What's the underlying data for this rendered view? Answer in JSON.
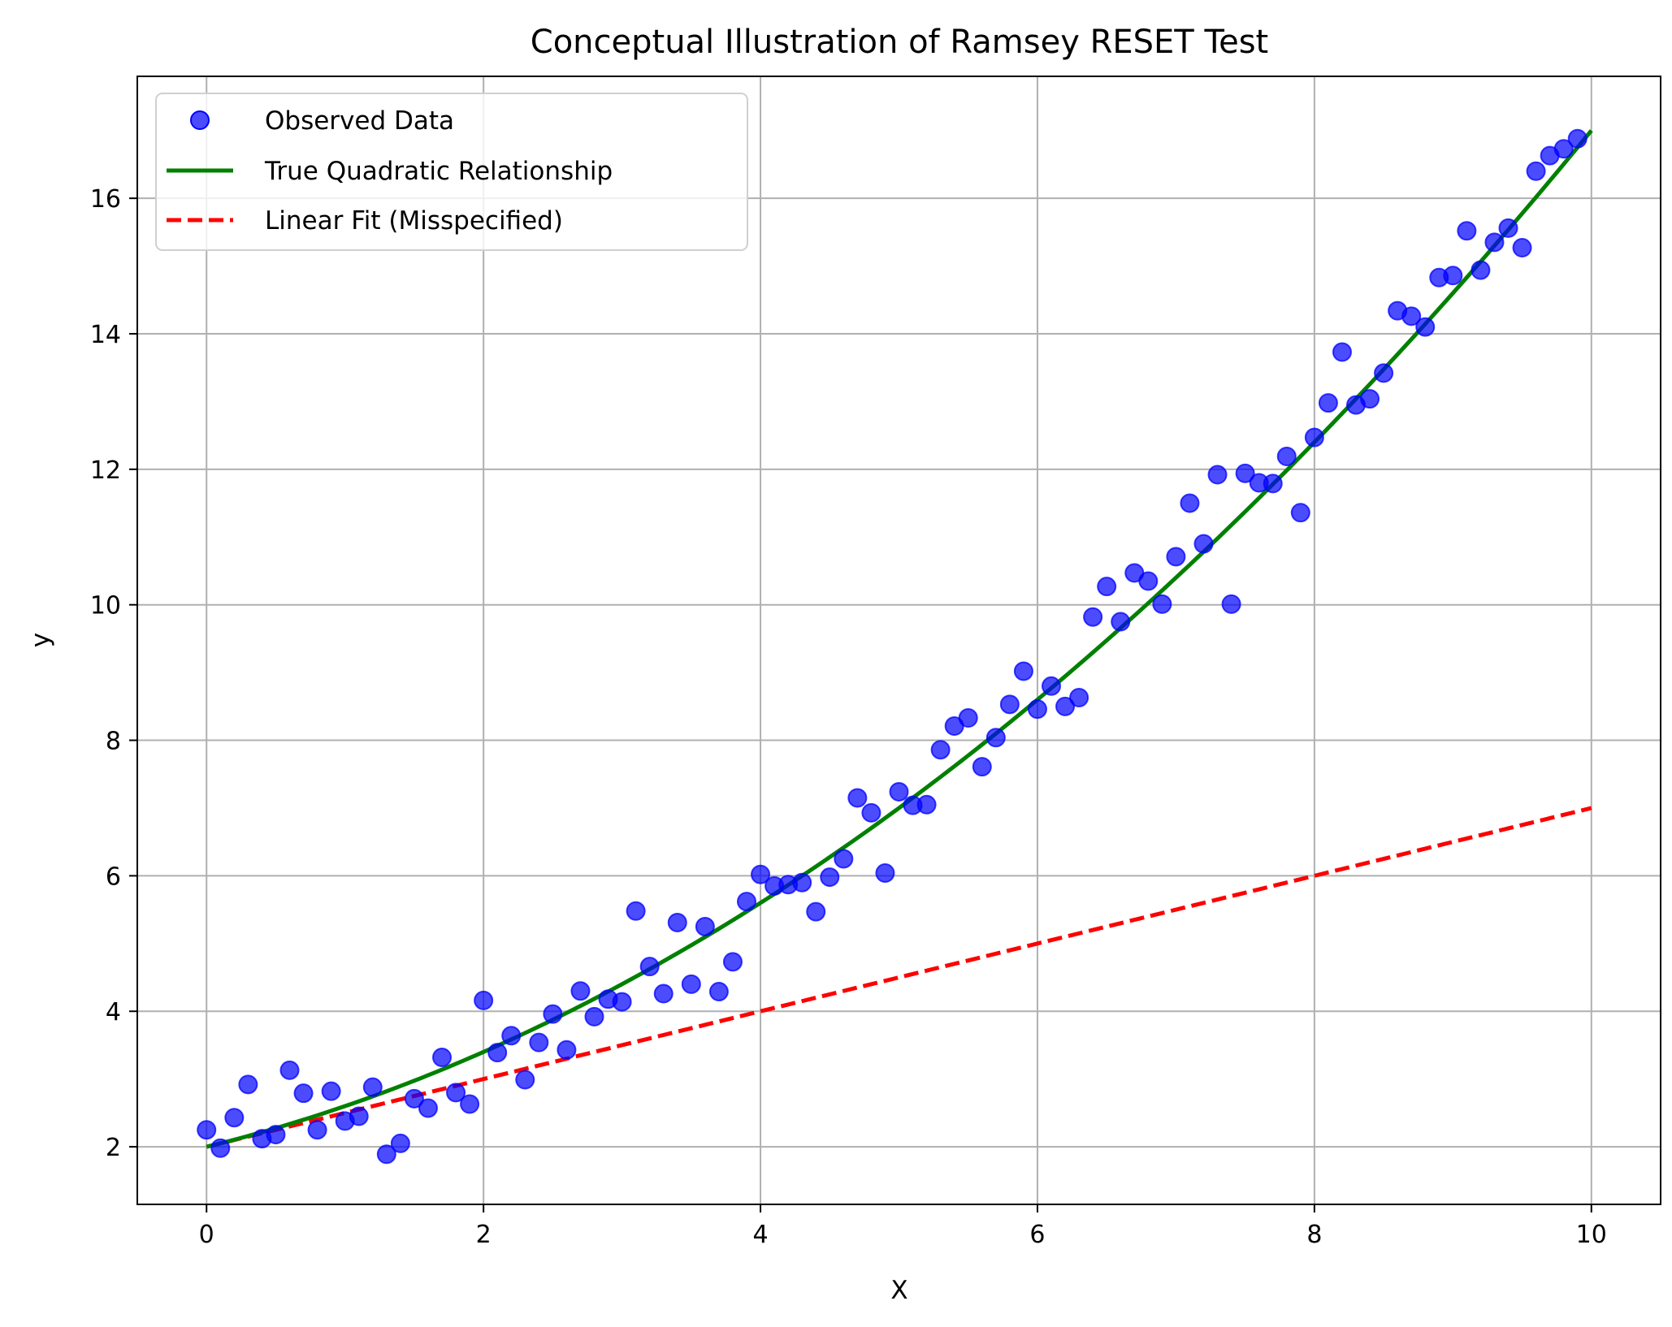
{
  "chart_data": {
    "type": "scatter",
    "title": "Conceptual Illustration of Ramsey RESET Test",
    "xlabel": "X",
    "ylabel": "y",
    "xlim": [
      -0.5,
      10.5
    ],
    "ylim": [
      1.15,
      17.8
    ],
    "xticks": [
      0,
      2,
      4,
      6,
      8,
      10
    ],
    "yticks": [
      2,
      4,
      6,
      8,
      10,
      12,
      14,
      16
    ],
    "grid": true,
    "legend_position": "top-left",
    "colors": {
      "observed": "#0000ff",
      "quadratic": "#008000",
      "linear": "#ff0000"
    },
    "series": [
      {
        "name": "Observed Data",
        "kind": "scatter",
        "points": [
          [
            0.0,
            2.25
          ],
          [
            0.1,
            1.98
          ],
          [
            0.2,
            2.43
          ],
          [
            0.3,
            2.92
          ],
          [
            0.4,
            2.12
          ],
          [
            0.5,
            2.18
          ],
          [
            0.6,
            3.13
          ],
          [
            0.7,
            2.79
          ],
          [
            0.8,
            2.25
          ],
          [
            0.9,
            2.82
          ],
          [
            1.0,
            2.38
          ],
          [
            1.1,
            2.45
          ],
          [
            1.2,
            2.88
          ],
          [
            1.3,
            1.89
          ],
          [
            1.4,
            2.05
          ],
          [
            1.5,
            2.71
          ],
          [
            1.6,
            2.57
          ],
          [
            1.7,
            3.32
          ],
          [
            1.8,
            2.8
          ],
          [
            1.9,
            2.63
          ],
          [
            2.0,
            4.16
          ],
          [
            2.1,
            3.39
          ],
          [
            2.2,
            3.64
          ],
          [
            2.3,
            2.99
          ],
          [
            2.4,
            3.54
          ],
          [
            2.5,
            3.96
          ],
          [
            2.6,
            3.43
          ],
          [
            2.7,
            4.3
          ],
          [
            2.8,
            3.92
          ],
          [
            2.9,
            4.18
          ],
          [
            3.0,
            4.14
          ],
          [
            3.1,
            5.48
          ],
          [
            3.2,
            4.66
          ],
          [
            3.3,
            4.26
          ],
          [
            3.4,
            5.31
          ],
          [
            3.5,
            4.4
          ],
          [
            3.6,
            5.25
          ],
          [
            3.7,
            4.29
          ],
          [
            3.8,
            4.73
          ],
          [
            3.9,
            5.62
          ],
          [
            4.0,
            6.02
          ],
          [
            4.1,
            5.85
          ],
          [
            4.2,
            5.87
          ],
          [
            4.3,
            5.9
          ],
          [
            4.4,
            5.47
          ],
          [
            4.5,
            5.98
          ],
          [
            4.6,
            6.25
          ],
          [
            4.7,
            7.15
          ],
          [
            4.8,
            6.93
          ],
          [
            4.9,
            6.04
          ],
          [
            5.0,
            7.24
          ],
          [
            5.1,
            7.04
          ],
          [
            5.2,
            7.05
          ],
          [
            5.3,
            7.86
          ],
          [
            5.4,
            8.21
          ],
          [
            5.5,
            8.33
          ],
          [
            5.6,
            7.61
          ],
          [
            5.7,
            8.04
          ],
          [
            5.8,
            8.53
          ],
          [
            5.9,
            9.02
          ],
          [
            6.0,
            8.46
          ],
          [
            6.1,
            8.8
          ],
          [
            6.2,
            8.5
          ],
          [
            6.3,
            8.63
          ],
          [
            6.4,
            9.82
          ],
          [
            6.5,
            10.27
          ],
          [
            6.6,
            9.75
          ],
          [
            6.7,
            10.47
          ],
          [
            6.8,
            10.35
          ],
          [
            6.9,
            10.01
          ],
          [
            7.0,
            10.71
          ],
          [
            7.1,
            11.5
          ],
          [
            7.2,
            10.9
          ],
          [
            7.3,
            11.92
          ],
          [
            7.4,
            10.01
          ],
          [
            7.5,
            11.94
          ],
          [
            7.6,
            11.8
          ],
          [
            7.7,
            11.79
          ],
          [
            7.8,
            12.19
          ],
          [
            7.9,
            11.36
          ],
          [
            8.0,
            12.47
          ],
          [
            8.1,
            12.98
          ],
          [
            8.2,
            13.73
          ],
          [
            8.3,
            12.95
          ],
          [
            8.4,
            13.04
          ],
          [
            8.5,
            13.42
          ],
          [
            8.6,
            14.34
          ],
          [
            8.7,
            14.26
          ],
          [
            8.8,
            14.1
          ],
          [
            8.9,
            14.83
          ],
          [
            9.0,
            14.86
          ],
          [
            9.1,
            15.52
          ],
          [
            9.2,
            14.94
          ],
          [
            9.3,
            15.35
          ],
          [
            9.4,
            15.56
          ],
          [
            9.5,
            15.27
          ],
          [
            9.6,
            16.4
          ],
          [
            9.7,
            16.63
          ],
          [
            9.8,
            16.73
          ],
          [
            9.9,
            16.88
          ]
        ]
      },
      {
        "name": "True Quadratic Relationship",
        "kind": "line",
        "equation": "y = 2 + 0.5x + 0.1x^2",
        "x_range": [
          0,
          10
        ]
      },
      {
        "name": "Linear Fit (Misspecified)",
        "kind": "dashed-line",
        "equation": "y = 2 + 0.5x",
        "x_range": [
          0,
          10
        ]
      }
    ]
  }
}
